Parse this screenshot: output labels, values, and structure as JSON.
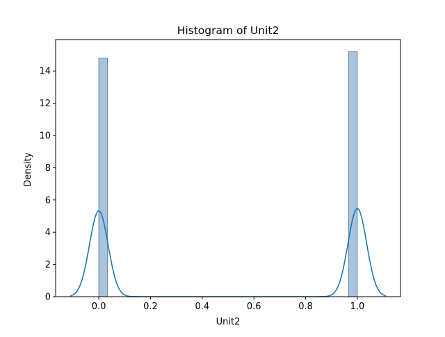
{
  "chart_data": {
    "type": "bar",
    "title": "Histogram of Unit2",
    "xlabel": "Unit2",
    "ylabel": "Density",
    "xlim": [
      -0.167,
      1.167
    ],
    "ylim": [
      0,
      15.95
    ],
    "xticks": [
      0.0,
      0.2,
      0.4,
      0.6,
      0.8,
      1.0
    ],
    "xtick_labels": [
      "0.0",
      "0.2",
      "0.4",
      "0.6",
      "0.8",
      "1.0"
    ],
    "yticks": [
      0,
      2,
      4,
      6,
      8,
      10,
      12,
      14
    ],
    "ytick_labels": [
      "0",
      "2",
      "4",
      "6",
      "8",
      "10",
      "12",
      "14"
    ],
    "grid": false,
    "legend": "none",
    "bins": [
      {
        "x0": 0.0,
        "x1": 0.0333,
        "value": 14.8
      },
      {
        "x0": 0.9667,
        "x1": 1.0,
        "value": 15.2
      }
    ],
    "kde": {
      "x_min": -0.111,
      "x_max": 1.111,
      "components": [
        {
          "center": 0.0,
          "height": 5.33,
          "sigma": 0.036
        },
        {
          "center": 1.0,
          "height": 5.47,
          "sigma": 0.036
        }
      ]
    },
    "colors": {
      "bar_fill": "#a6c4de",
      "bar_edge": "#6d8497",
      "kde_line": "#1f77b4",
      "axes": "#000000"
    }
  }
}
